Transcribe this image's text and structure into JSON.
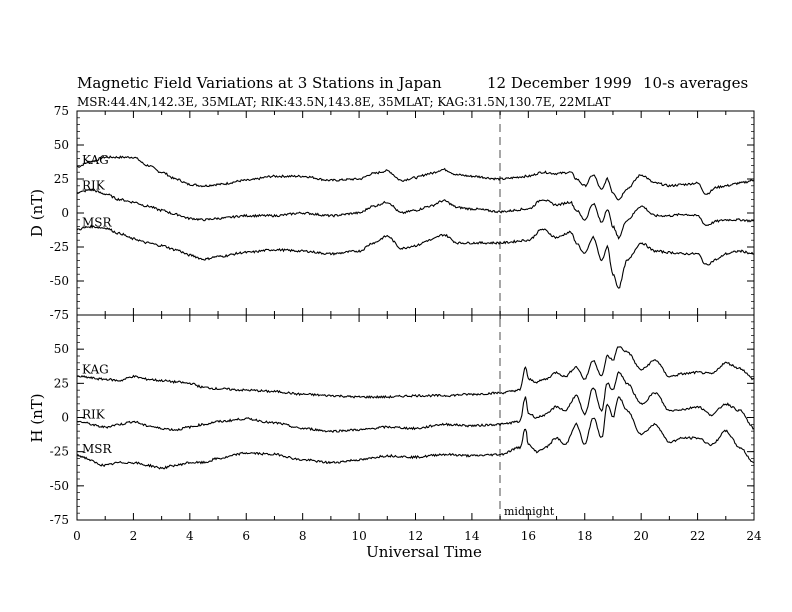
{
  "title": {
    "main": "Magnetic Field Variations at 3 Stations in Japan",
    "date": "12 December 1999",
    "averaging": "10-s averages",
    "stations_line": "MSR:44.4N,142.3E, 35MLAT;   RIK:43.5N,143.8E, 35MLAT;   KAG:31.5N,130.7E, 22MLAT"
  },
  "chart_data": [
    {
      "type": "line",
      "panel": "D",
      "ylabel": "D (nT)",
      "ylim": [
        -75,
        75
      ],
      "yticks": [
        "75",
        "50",
        "25",
        "0",
        "-25",
        "-50",
        "-75"
      ],
      "xlim": [
        0,
        24
      ],
      "series": [
        {
          "name": "KAG",
          "x": [
            0,
            0.5,
            1,
            1.5,
            2,
            2.5,
            3,
            3.5,
            4,
            4.5,
            5,
            6,
            7,
            8,
            9,
            10,
            10.5,
            11,
            11.5,
            12,
            12.5,
            13,
            13.5,
            14,
            15,
            16,
            16.5,
            17,
            17.5,
            17.7,
            18,
            18.3,
            18.6,
            18.8,
            19,
            19.2,
            19.5,
            20,
            20.5,
            21,
            21.5,
            22,
            22.3,
            22.7,
            23,
            23.5,
            24
          ],
          "y": [
            34,
            38,
            41,
            41,
            41,
            35,
            30,
            25,
            21,
            20,
            21,
            24,
            27,
            27,
            24,
            25,
            29,
            31,
            24,
            26,
            29,
            32,
            28,
            27,
            25,
            27,
            30,
            29,
            30,
            25,
            20,
            28,
            17,
            25,
            15,
            10,
            18,
            28,
            22,
            20,
            21,
            22,
            14,
            19,
            20,
            22,
            24
          ]
        },
        {
          "name": "RIK",
          "x": [
            0,
            0.5,
            1,
            1.5,
            2,
            2.5,
            3,
            3.5,
            4,
            4.5,
            5,
            6,
            7,
            8,
            9,
            10,
            10.5,
            11,
            11.5,
            12,
            12.5,
            13,
            13.5,
            14,
            15,
            16,
            16.5,
            17,
            17.5,
            17.7,
            18,
            18.3,
            18.6,
            18.8,
            19,
            19.2,
            19.5,
            20,
            20.5,
            21,
            21.5,
            22,
            22.3,
            22.7,
            23,
            23.5,
            24
          ],
          "y": [
            15,
            17,
            14,
            10,
            8,
            5,
            2,
            -1,
            -4,
            -5,
            -4,
            -2,
            -2,
            0,
            -2,
            0,
            5,
            8,
            0,
            2,
            5,
            9,
            4,
            3,
            1,
            3,
            10,
            6,
            8,
            2,
            -5,
            7,
            -7,
            3,
            -10,
            -18,
            -5,
            5,
            -2,
            -2,
            -1,
            -2,
            -9,
            -6,
            -5,
            -5,
            -6
          ]
        },
        {
          "name": "MSR",
          "x": [
            0,
            0.5,
            1,
            1.5,
            2,
            2.5,
            3,
            3.5,
            4,
            4.5,
            5,
            6,
            7,
            8,
            9,
            10,
            10.5,
            11,
            11.5,
            12,
            12.5,
            13,
            13.5,
            14,
            15,
            16,
            16.5,
            17,
            17.5,
            17.7,
            18,
            18.3,
            18.6,
            18.8,
            19,
            19.2,
            19.5,
            20,
            20.5,
            21,
            21.5,
            22,
            22.3,
            22.7,
            23,
            23.5,
            24
          ],
          "y": [
            -12,
            -10,
            -11,
            -15,
            -19,
            -22,
            -24,
            -27,
            -31,
            -34,
            -32,
            -29,
            -27,
            -28,
            -30,
            -28,
            -22,
            -17,
            -26,
            -24,
            -20,
            -16,
            -22,
            -22,
            -22,
            -20,
            -12,
            -18,
            -14,
            -22,
            -30,
            -18,
            -35,
            -25,
            -45,
            -55,
            -35,
            -22,
            -28,
            -29,
            -30,
            -30,
            -38,
            -34,
            -30,
            -28,
            -30
          ]
        }
      ]
    },
    {
      "type": "line",
      "panel": "H",
      "ylabel": "H (nT)",
      "ylim": [
        -75,
        75
      ],
      "yticks": [
        "50",
        "25",
        "0",
        "-25",
        "-50",
        "-75"
      ],
      "xlim": [
        0,
        24
      ],
      "xticks": [
        "0",
        "2",
        "4",
        "6",
        "8",
        "10",
        "12",
        "14",
        "16",
        "18",
        "20",
        "22",
        "24"
      ],
      "xlabel": "Universal Time",
      "annotation": {
        "x": 15,
        "label": "midnight"
      },
      "series": [
        {
          "name": "KAG",
          "x": [
            0,
            1,
            1.5,
            2,
            2.5,
            3,
            3.5,
            4,
            4.5,
            5,
            6,
            7,
            8,
            9,
            10,
            11,
            12,
            13,
            14,
            15,
            15.7,
            15.9,
            16,
            16.3,
            16.6,
            17,
            17.3,
            17.7,
            18,
            18.3,
            18.6,
            18.8,
            19,
            19.2,
            19.5,
            20,
            20.5,
            21,
            21.5,
            22,
            22.5,
            23,
            23.5,
            24
          ],
          "y": [
            30,
            28,
            27,
            30,
            28,
            27,
            26,
            25,
            22,
            21,
            20,
            19,
            17,
            16,
            15,
            15,
            16,
            16,
            17,
            18,
            20,
            37,
            28,
            26,
            28,
            33,
            30,
            37,
            28,
            42,
            30,
            45,
            42,
            52,
            48,
            35,
            42,
            30,
            32,
            33,
            32,
            40,
            36,
            28
          ]
        },
        {
          "name": "RIK",
          "x": [
            0,
            1,
            1.5,
            2,
            2.5,
            3,
            3.5,
            4,
            4.5,
            5,
            6,
            7,
            8,
            9,
            10,
            11,
            12,
            13,
            14,
            15,
            15.7,
            15.9,
            16,
            16.3,
            16.6,
            17,
            17.3,
            17.7,
            18,
            18.3,
            18.6,
            18.8,
            19,
            19.2,
            19.5,
            20,
            20.5,
            21,
            21.5,
            22,
            22.5,
            23,
            23.5,
            24
          ],
          "y": [
            -3,
            -7,
            -5,
            -3,
            -6,
            -8,
            -9,
            -7,
            -5,
            -3,
            -1,
            -4,
            -8,
            -10,
            -9,
            -7,
            -8,
            -5,
            -6,
            -5,
            -3,
            15,
            3,
            0,
            2,
            8,
            5,
            16,
            2,
            22,
            5,
            25,
            20,
            33,
            25,
            10,
            18,
            5,
            6,
            8,
            2,
            10,
            5,
            -8
          ]
        },
        {
          "name": "MSR",
          "x": [
            0,
            1,
            1.5,
            2,
            2.5,
            3,
            3.5,
            4,
            4.5,
            5,
            6,
            7,
            8,
            9,
            10,
            11,
            12,
            13,
            14,
            15,
            15.7,
            15.9,
            16,
            16.3,
            16.6,
            17,
            17.3,
            17.7,
            18,
            18.3,
            18.6,
            18.8,
            19,
            19.2,
            19.5,
            20,
            20.5,
            21,
            21.5,
            22,
            22.5,
            23,
            23.5,
            24
          ],
          "y": [
            -28,
            -35,
            -33,
            -33,
            -35,
            -37,
            -35,
            -33,
            -33,
            -30,
            -26,
            -27,
            -31,
            -33,
            -31,
            -28,
            -29,
            -27,
            -28,
            -27,
            -22,
            -8,
            -20,
            -25,
            -22,
            -15,
            -20,
            -5,
            -20,
            0,
            -15,
            10,
            0,
            15,
            5,
            -12,
            -5,
            -18,
            -15,
            -15,
            -20,
            -10,
            -22,
            -33
          ]
        }
      ]
    }
  ]
}
